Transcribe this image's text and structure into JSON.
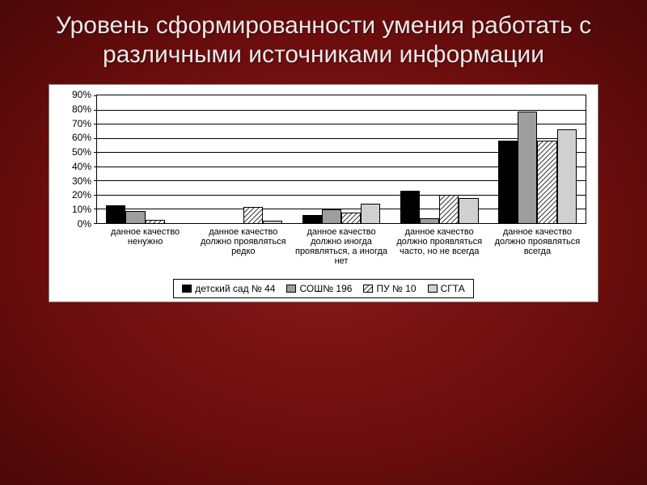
{
  "title": "Уровень сформированности умения работать с различными источниками информации",
  "chart": {
    "type": "bar",
    "background": "#ffffff",
    "axis_color": "#000000",
    "ylim": [
      0,
      90
    ],
    "ytick_step": 10,
    "ytick_suffix": "%",
    "label_fontsize": 12,
    "xlabel_fontsize": 11,
    "bar_cluster_gap_pct": 20,
    "series": [
      {
        "name": "детский сад № 44",
        "fill": "#000000",
        "border": "#000000",
        "pattern": "solid"
      },
      {
        "name": "СОШ№ 196",
        "fill": "#9e9e9e",
        "border": "#000000",
        "pattern": "solid"
      },
      {
        "name": "ПУ № 10",
        "fill": "#ffffff",
        "border": "#000000",
        "pattern": "diag"
      },
      {
        "name": "СГТА",
        "fill": "#d0d0d0",
        "border": "#000000",
        "pattern": "solid"
      }
    ],
    "categories": [
      "данное качество ненужно",
      "данное качество должно проявляться редко",
      "данное качество должно иногда проявляться, а иногда нет",
      "данное качество должно проявляться часто, но не всегда",
      "данное качество должно проявляться всегда"
    ],
    "values": [
      [
        13,
        9,
        3,
        0
      ],
      [
        0,
        0,
        12,
        2
      ],
      [
        6,
        10,
        8,
        14
      ],
      [
        23,
        4,
        20,
        18
      ],
      [
        58,
        78,
        58,
        66
      ]
    ],
    "hatch_stroke": "#333333",
    "hatch_bg": "#ffffff"
  },
  "legend_labels": [
    "детский сад № 44",
    "СОШ№ 196",
    "ПУ № 10",
    "СГТА"
  ]
}
